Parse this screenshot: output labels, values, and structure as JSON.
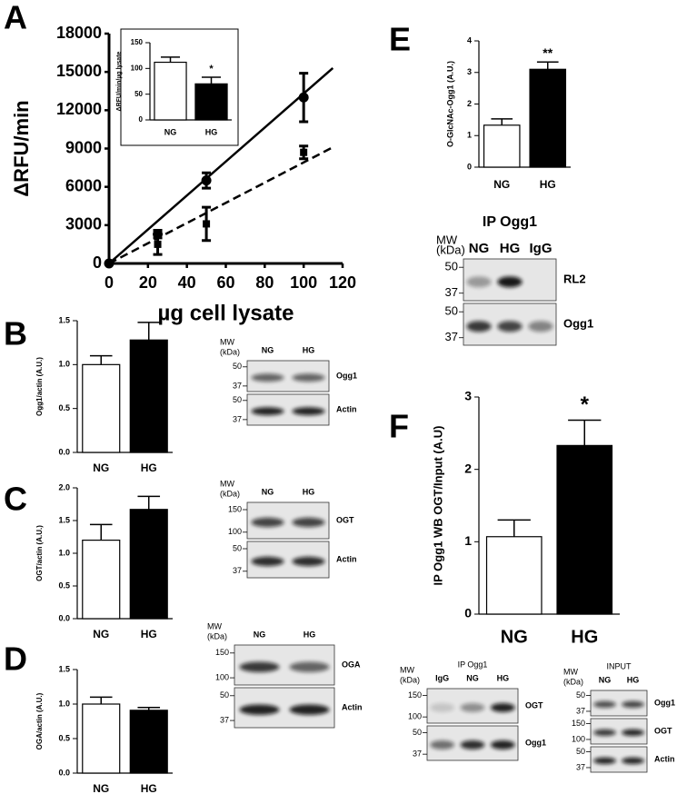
{
  "panel_labels": [
    "A",
    "B",
    "C",
    "D",
    "E",
    "F"
  ],
  "chart_data": [
    {
      "type": "line",
      "xlabel": "µg cell lysate",
      "ylabel": "ΔRFU/min",
      "x": [
        0,
        25,
        50,
        100
      ],
      "xlim": [
        0,
        120
      ],
      "xticks": [
        0,
        20,
        40,
        60,
        80,
        100,
        120
      ],
      "ylim": [
        0,
        18000
      ],
      "yticks": [
        0,
        3000,
        6000,
        9000,
        12000,
        15000,
        18000
      ],
      "series": [
        {
          "color": "#000000",
          "marker": "circle",
          "line_style": "solid",
          "values": [
            0,
            2300,
            6500,
            13000
          ],
          "errors": [
            null,
            300,
            600,
            1900
          ],
          "fit": {
            "x": [
              0,
              115
            ],
            "values": [
              0,
              15300
            ]
          }
        },
        {
          "color": "#000000",
          "marker": "square",
          "line_style": "dashed",
          "values": [
            0,
            1500,
            3100,
            8700
          ],
          "errors": [
            null,
            800,
            1300,
            500
          ],
          "fit": {
            "x": [
              0,
              115
            ],
            "values": [
              0,
              9100
            ]
          }
        }
      ]
    },
    {
      "type": "bar",
      "ylabel": "ΔRFU/min/µg lysate",
      "categories": [
        "NG",
        "HG"
      ],
      "values": [
        112,
        70
      ],
      "errors": [
        10,
        13
      ],
      "colors": [
        "#ffffff",
        "#000000"
      ],
      "significance": [
        null,
        "*"
      ],
      "ylim": [
        0,
        150
      ],
      "yticks": [
        0,
        50,
        100,
        150
      ]
    },
    {
      "type": "bar",
      "ylabel": "Ogg1/actin (A.U.)",
      "categories": [
        "NG",
        "HG"
      ],
      "values": [
        1.0,
        1.28
      ],
      "errors": [
        0.1,
        0.2
      ],
      "colors": [
        "#ffffff",
        "#000000"
      ],
      "ylim": [
        0,
        1.5
      ],
      "yticks": [
        {
          "value": 0,
          "label": "0.0"
        },
        {
          "value": 0.5,
          "label": "0.5"
        },
        {
          "value": 1,
          "label": "1.0"
        },
        {
          "value": 1.5,
          "label": "1.5"
        }
      ]
    },
    {
      "type": "bar",
      "ylabel": "OGT/actin (A.U.)",
      "categories": [
        "NG",
        "HG"
      ],
      "values": [
        1.2,
        1.67
      ],
      "errors": [
        0.24,
        0.2
      ],
      "colors": [
        "#ffffff",
        "#000000"
      ],
      "ylim": [
        0,
        2
      ],
      "yticks": [
        {
          "value": 0,
          "label": "0.0"
        },
        {
          "value": 0.5,
          "label": "0.5"
        },
        {
          "value": 1,
          "label": "1.0"
        },
        {
          "value": 1.5,
          "label": "1.5"
        },
        {
          "value": 2,
          "label": "2.0"
        }
      ]
    },
    {
      "type": "bar",
      "ylabel": "OGA/actin (A.U.)",
      "categories": [
        "NG",
        "HG"
      ],
      "values": [
        1.0,
        0.91
      ],
      "errors": [
        0.1,
        0.04
      ],
      "colors": [
        "#ffffff",
        "#000000"
      ],
      "ylim": [
        0,
        1.5
      ],
      "yticks": [
        {
          "value": 0,
          "label": "0.0"
        },
        {
          "value": 0.5,
          "label": "0.5"
        },
        {
          "value": 1,
          "label": "1.0"
        },
        {
          "value": 1.5,
          "label": "1.5"
        }
      ]
    },
    {
      "type": "bar",
      "ylabel": "O-GlcNAc-Ogg1 (A.U.)",
      "categories": [
        "NG",
        "HG"
      ],
      "values": [
        1.33,
        3.1
      ],
      "errors": [
        0.2,
        0.23
      ],
      "colors": [
        "#ffffff",
        "#000000"
      ],
      "significance": [
        null,
        "**"
      ],
      "ylim": [
        0,
        4
      ],
      "yticks": [
        0,
        1,
        2,
        3,
        4
      ]
    },
    {
      "type": "bar",
      "ylabel": "IP Ogg1 WB OGT/Input (A.U)",
      "categories": [
        "NG",
        "HG"
      ],
      "values": [
        1.07,
        2.33
      ],
      "errors": [
        0.23,
        0.35
      ],
      "colors": [
        "#ffffff",
        "#000000"
      ],
      "significance": [
        null,
        "*"
      ],
      "ylim": [
        0,
        3
      ],
      "yticks": [
        0,
        1,
        2,
        3
      ]
    }
  ],
  "blots": [
    {
      "mw": [
        "MW",
        "(kDa)"
      ],
      "lanes": [
        "NG",
        "HG"
      ],
      "strips": [
        {
          "label": "Ogg1",
          "markers": [
            "50",
            "37"
          ]
        },
        {
          "label": "Actin",
          "markers": [
            "50",
            "37"
          ]
        }
      ]
    },
    {
      "mw": [
        "MW",
        "(kDa)"
      ],
      "lanes": [
        "NG",
        "HG"
      ],
      "strips": [
        {
          "label": "OGT",
          "markers": [
            "150",
            "100"
          ]
        },
        {
          "label": "Actin",
          "markers": [
            "50",
            "37"
          ]
        }
      ]
    },
    {
      "mw": [
        "MW",
        "(kDa)"
      ],
      "lanes": [
        "NG",
        "HG"
      ],
      "strips": [
        {
          "label": "OGA",
          "markers": [
            "150",
            "100"
          ]
        },
        {
          "label": "Actin",
          "markers": [
            "50",
            "37"
          ]
        }
      ]
    },
    {
      "title": "IP Ogg1",
      "mw": [
        "MW",
        "(kDa)"
      ],
      "lanes": [
        "NG",
        "HG",
        "IgG"
      ],
      "strips": [
        {
          "label": "RL2",
          "markers": [
            "50",
            "37"
          ]
        },
        {
          "label": "Ogg1",
          "markers": [
            "50",
            "37"
          ]
        }
      ]
    },
    {
      "title": "IP Ogg1",
      "mw": [
        "MW",
        "(kDa)"
      ],
      "lanes": [
        "IgG",
        "NG",
        "HG"
      ],
      "strips": [
        {
          "label": "OGT",
          "markers": [
            "150",
            "100"
          ]
        },
        {
          "label": "Ogg1",
          "markers": [
            "50",
            "37"
          ]
        }
      ]
    },
    {
      "title": "INPUT",
      "mw": [
        "MW",
        "(kDa)"
      ],
      "lanes": [
        "NG",
        "HG"
      ],
      "strips": [
        {
          "label": "Ogg1",
          "markers": [
            "50",
            "37"
          ]
        },
        {
          "label": "OGT",
          "markers": [
            "150",
            "100"
          ]
        },
        {
          "label": "Actin",
          "markers": [
            "50",
            "37"
          ]
        }
      ]
    }
  ]
}
